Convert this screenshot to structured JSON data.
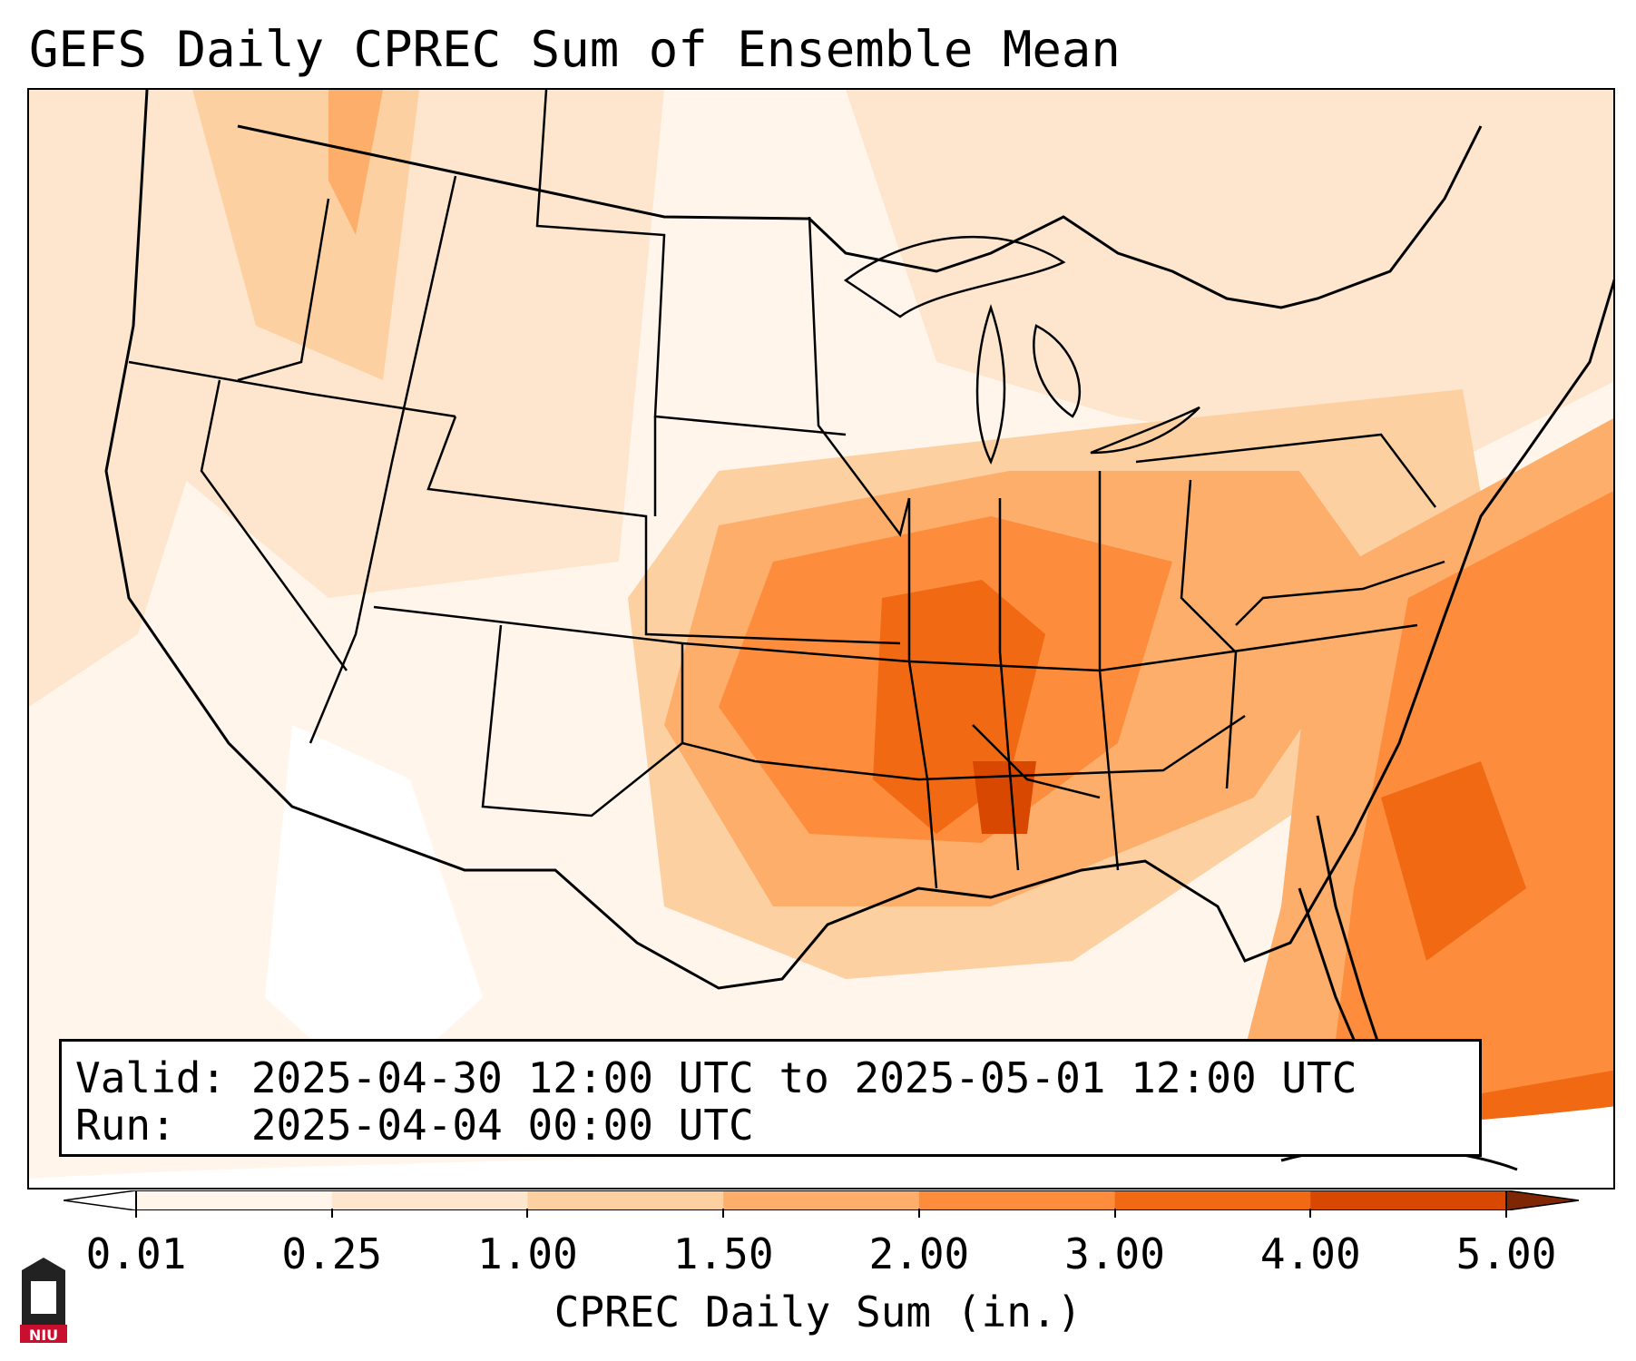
{
  "title": "GEFS Daily CPREC Sum of Ensemble Mean",
  "info": {
    "valid_line": "Valid: 2025-04-30 12:00 UTC to 2025-05-01 12:00 UTC",
    "run_line": "Run:   2025-04-04 00:00 UTC"
  },
  "colorbar": {
    "title": "CPREC Daily Sum (in.)",
    "ticks": [
      "0.01",
      "0.25",
      "1.00",
      "1.50",
      "2.00",
      "3.00",
      "4.00",
      "5.00"
    ],
    "colors": [
      "#fff5eb",
      "#fee6ce",
      "#fdd0a2",
      "#fdae6b",
      "#fd8d3c",
      "#f16913",
      "#d94801",
      "#a63603"
    ],
    "under_color": "#ffffff",
    "over_color": "#7f2704"
  },
  "logo": {
    "text": "NIU",
    "color": "#c8102e"
  }
}
